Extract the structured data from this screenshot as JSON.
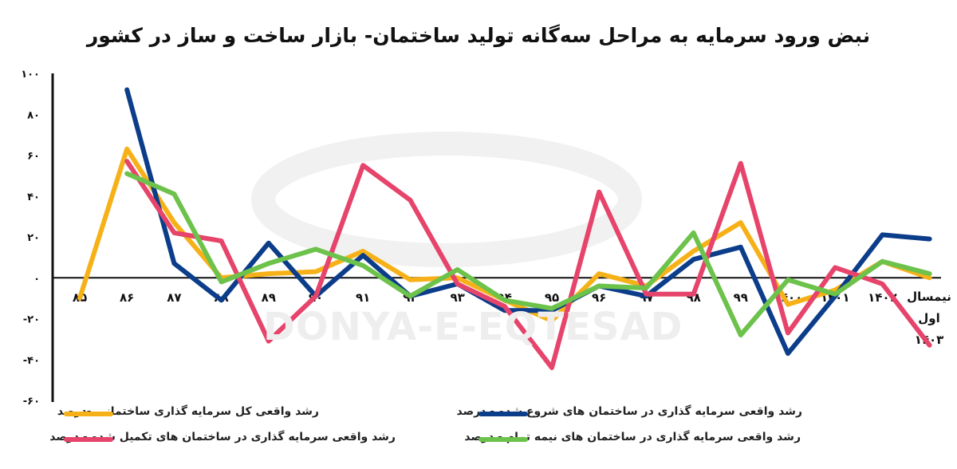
{
  "title": "نبض ورود سرمایه به مراحل سه‌گانه تولید ساختمان- بازار ساخت و ساز در کشور",
  "watermark": "DONYA-E-EQTESAD",
  "colors": {
    "total": "#F7B118",
    "started": "#0C3D8A",
    "completed": "#E6446B",
    "halfdone": "#6CC24A"
  },
  "chart_data": {
    "type": "line",
    "title": "نبض ورود سرمایه به مراحل سه‌گانه تولید ساختمان- بازار ساخت و ساز در کشور",
    "categories": [
      "۸۵",
      "۸۶",
      "۸۷",
      "۸۸",
      "۸۹",
      "۹۰",
      "۹۱",
      "۹۲",
      "۹۳",
      "۹۴",
      "۹۵",
      "۹۶",
      "۹۷",
      "۹۸",
      "۹۹",
      "۱۴۰۰",
      "۱۴۰۱",
      "۱۴۰۲",
      "نیمسال اول ۱۴۰۳"
    ],
    "yticks": [
      "۱۰۰",
      "۸۰",
      "۶۰",
      "۴۰",
      "۲۰",
      "۰",
      "-۲۰",
      "-۴۰",
      "-۶۰"
    ],
    "ylim": [
      -60,
      100
    ],
    "grid": false,
    "legend_position": "bottom",
    "series": [
      {
        "name": "رشد واقعی کل سرمایه گذاری ساختمانی -درصد",
        "key": "total",
        "values": [
          -10,
          63,
          27,
          0,
          2,
          3,
          13,
          -1,
          0,
          -11,
          -21,
          2,
          -4,
          13,
          27,
          -13,
          -6,
          8,
          0
        ]
      },
      {
        "name": "رشد واقعی سرمایه گذاری در ساختمان های شروع شده - درصد",
        "key": "started",
        "values": [
          null,
          92,
          7,
          -11,
          17,
          -9,
          11,
          -9,
          -3,
          -16,
          -16,
          -4,
          -9,
          9,
          15,
          -37,
          -9,
          21,
          19
        ]
      },
      {
        "name": "رشد واقعی سرمایه گذاری در ساختمان های تکمیل شده - درصد",
        "key": "completed",
        "values": [
          null,
          57,
          22,
          18,
          -31,
          -9,
          55,
          38,
          -3,
          -14,
          -44,
          42,
          -8,
          -8,
          56,
          -27,
          5,
          -3,
          -33
        ]
      },
      {
        "name": "رشد واقعی سرمایه گذاری در ساختمان های نیمه تمام - درصد",
        "key": "halfdone",
        "values": [
          null,
          51,
          41,
          -2,
          7,
          14,
          6,
          -9,
          4,
          -11,
          -15,
          -4,
          -5,
          22,
          -28,
          -1,
          -8,
          8,
          2
        ]
      }
    ]
  }
}
